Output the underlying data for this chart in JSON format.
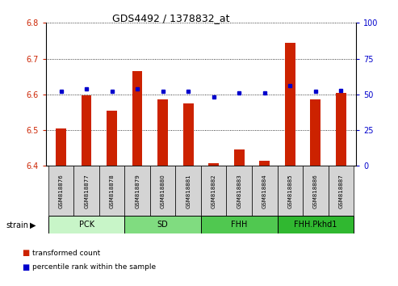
{
  "title": "GDS4492 / 1378832_at",
  "samples": [
    "GSM818876",
    "GSM818877",
    "GSM818878",
    "GSM818879",
    "GSM818880",
    "GSM818881",
    "GSM818882",
    "GSM818883",
    "GSM818884",
    "GSM818885",
    "GSM818886",
    "GSM818887"
  ],
  "transformed_counts": [
    6.505,
    6.598,
    6.555,
    6.665,
    6.585,
    6.575,
    6.408,
    6.445,
    6.415,
    6.745,
    6.585,
    6.605
  ],
  "percentile_ranks": [
    52,
    54,
    52,
    54,
    52,
    52,
    48,
    51,
    51,
    56,
    52,
    53
  ],
  "groups": [
    {
      "label": "PCK",
      "start": 0,
      "end": 3,
      "color": "#c8f5c8"
    },
    {
      "label": "SD",
      "start": 3,
      "end": 6,
      "color": "#80dc80"
    },
    {
      "label": "FHH",
      "start": 6,
      "end": 9,
      "color": "#50c850"
    },
    {
      "label": "FHH.Pkhd1",
      "start": 9,
      "end": 12,
      "color": "#30b830"
    }
  ],
  "ylim_left": [
    6.4,
    6.8
  ],
  "ylim_right": [
    0,
    100
  ],
  "yticks_left": [
    6.4,
    6.5,
    6.6,
    6.7,
    6.8
  ],
  "yticks_right": [
    0,
    25,
    50,
    75,
    100
  ],
  "bar_color": "#cc2200",
  "dot_color": "#0000cc",
  "bar_width": 0.4,
  "grid_color": "#000000"
}
